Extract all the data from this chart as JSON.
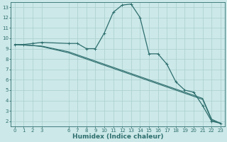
{
  "title": "",
  "xlabel": "Humidex (Indice chaleur)",
  "bg_color": "#cce8e8",
  "line_color": "#2e6e6e",
  "grid_color": "#aacfcf",
  "xlim": [
    -0.5,
    23.5
  ],
  "ylim": [
    1.5,
    13.5
  ],
  "xticks": [
    0,
    1,
    2,
    3,
    6,
    7,
    8,
    9,
    10,
    11,
    12,
    13,
    14,
    15,
    16,
    17,
    18,
    19,
    20,
    21,
    22,
    23
  ],
  "yticks": [
    2,
    3,
    4,
    5,
    6,
    7,
    8,
    9,
    10,
    11,
    12,
    13
  ],
  "line1_x": [
    0,
    1,
    2,
    3,
    6,
    7,
    8,
    9,
    10,
    11,
    12,
    13,
    14,
    15,
    16,
    17,
    18,
    19,
    20,
    21,
    22,
    23
  ],
  "line1_y": [
    9.4,
    9.4,
    9.5,
    9.6,
    9.5,
    9.5,
    9.0,
    9.0,
    10.5,
    12.5,
    13.2,
    13.3,
    12.0,
    8.5,
    8.5,
    7.5,
    5.8,
    5.0,
    4.8,
    3.5,
    2.0,
    1.8
  ],
  "line2_x": [
    0,
    1,
    2,
    3,
    6,
    7,
    8,
    9,
    10,
    11,
    12,
    13,
    14,
    15,
    16,
    17,
    18,
    19,
    20,
    21,
    22,
    23
  ],
  "line2_y": [
    9.4,
    9.35,
    9.3,
    9.25,
    8.7,
    8.4,
    8.1,
    7.8,
    7.5,
    7.2,
    6.9,
    6.6,
    6.3,
    6.0,
    5.7,
    5.4,
    5.1,
    4.8,
    4.5,
    4.2,
    2.2,
    1.8
  ],
  "line3_x": [
    0,
    1,
    2,
    3,
    6,
    7,
    8,
    9,
    10,
    11,
    12,
    13,
    14,
    15,
    16,
    17,
    18,
    19,
    20,
    21,
    22,
    23
  ],
  "line3_y": [
    9.4,
    9.35,
    9.3,
    9.2,
    8.6,
    8.3,
    8.0,
    7.7,
    7.4,
    7.1,
    6.8,
    6.5,
    6.2,
    5.9,
    5.6,
    5.3,
    5.0,
    4.7,
    4.4,
    4.1,
    2.1,
    1.8
  ],
  "tick_fontsize": 5,
  "label_fontsize": 6.5
}
